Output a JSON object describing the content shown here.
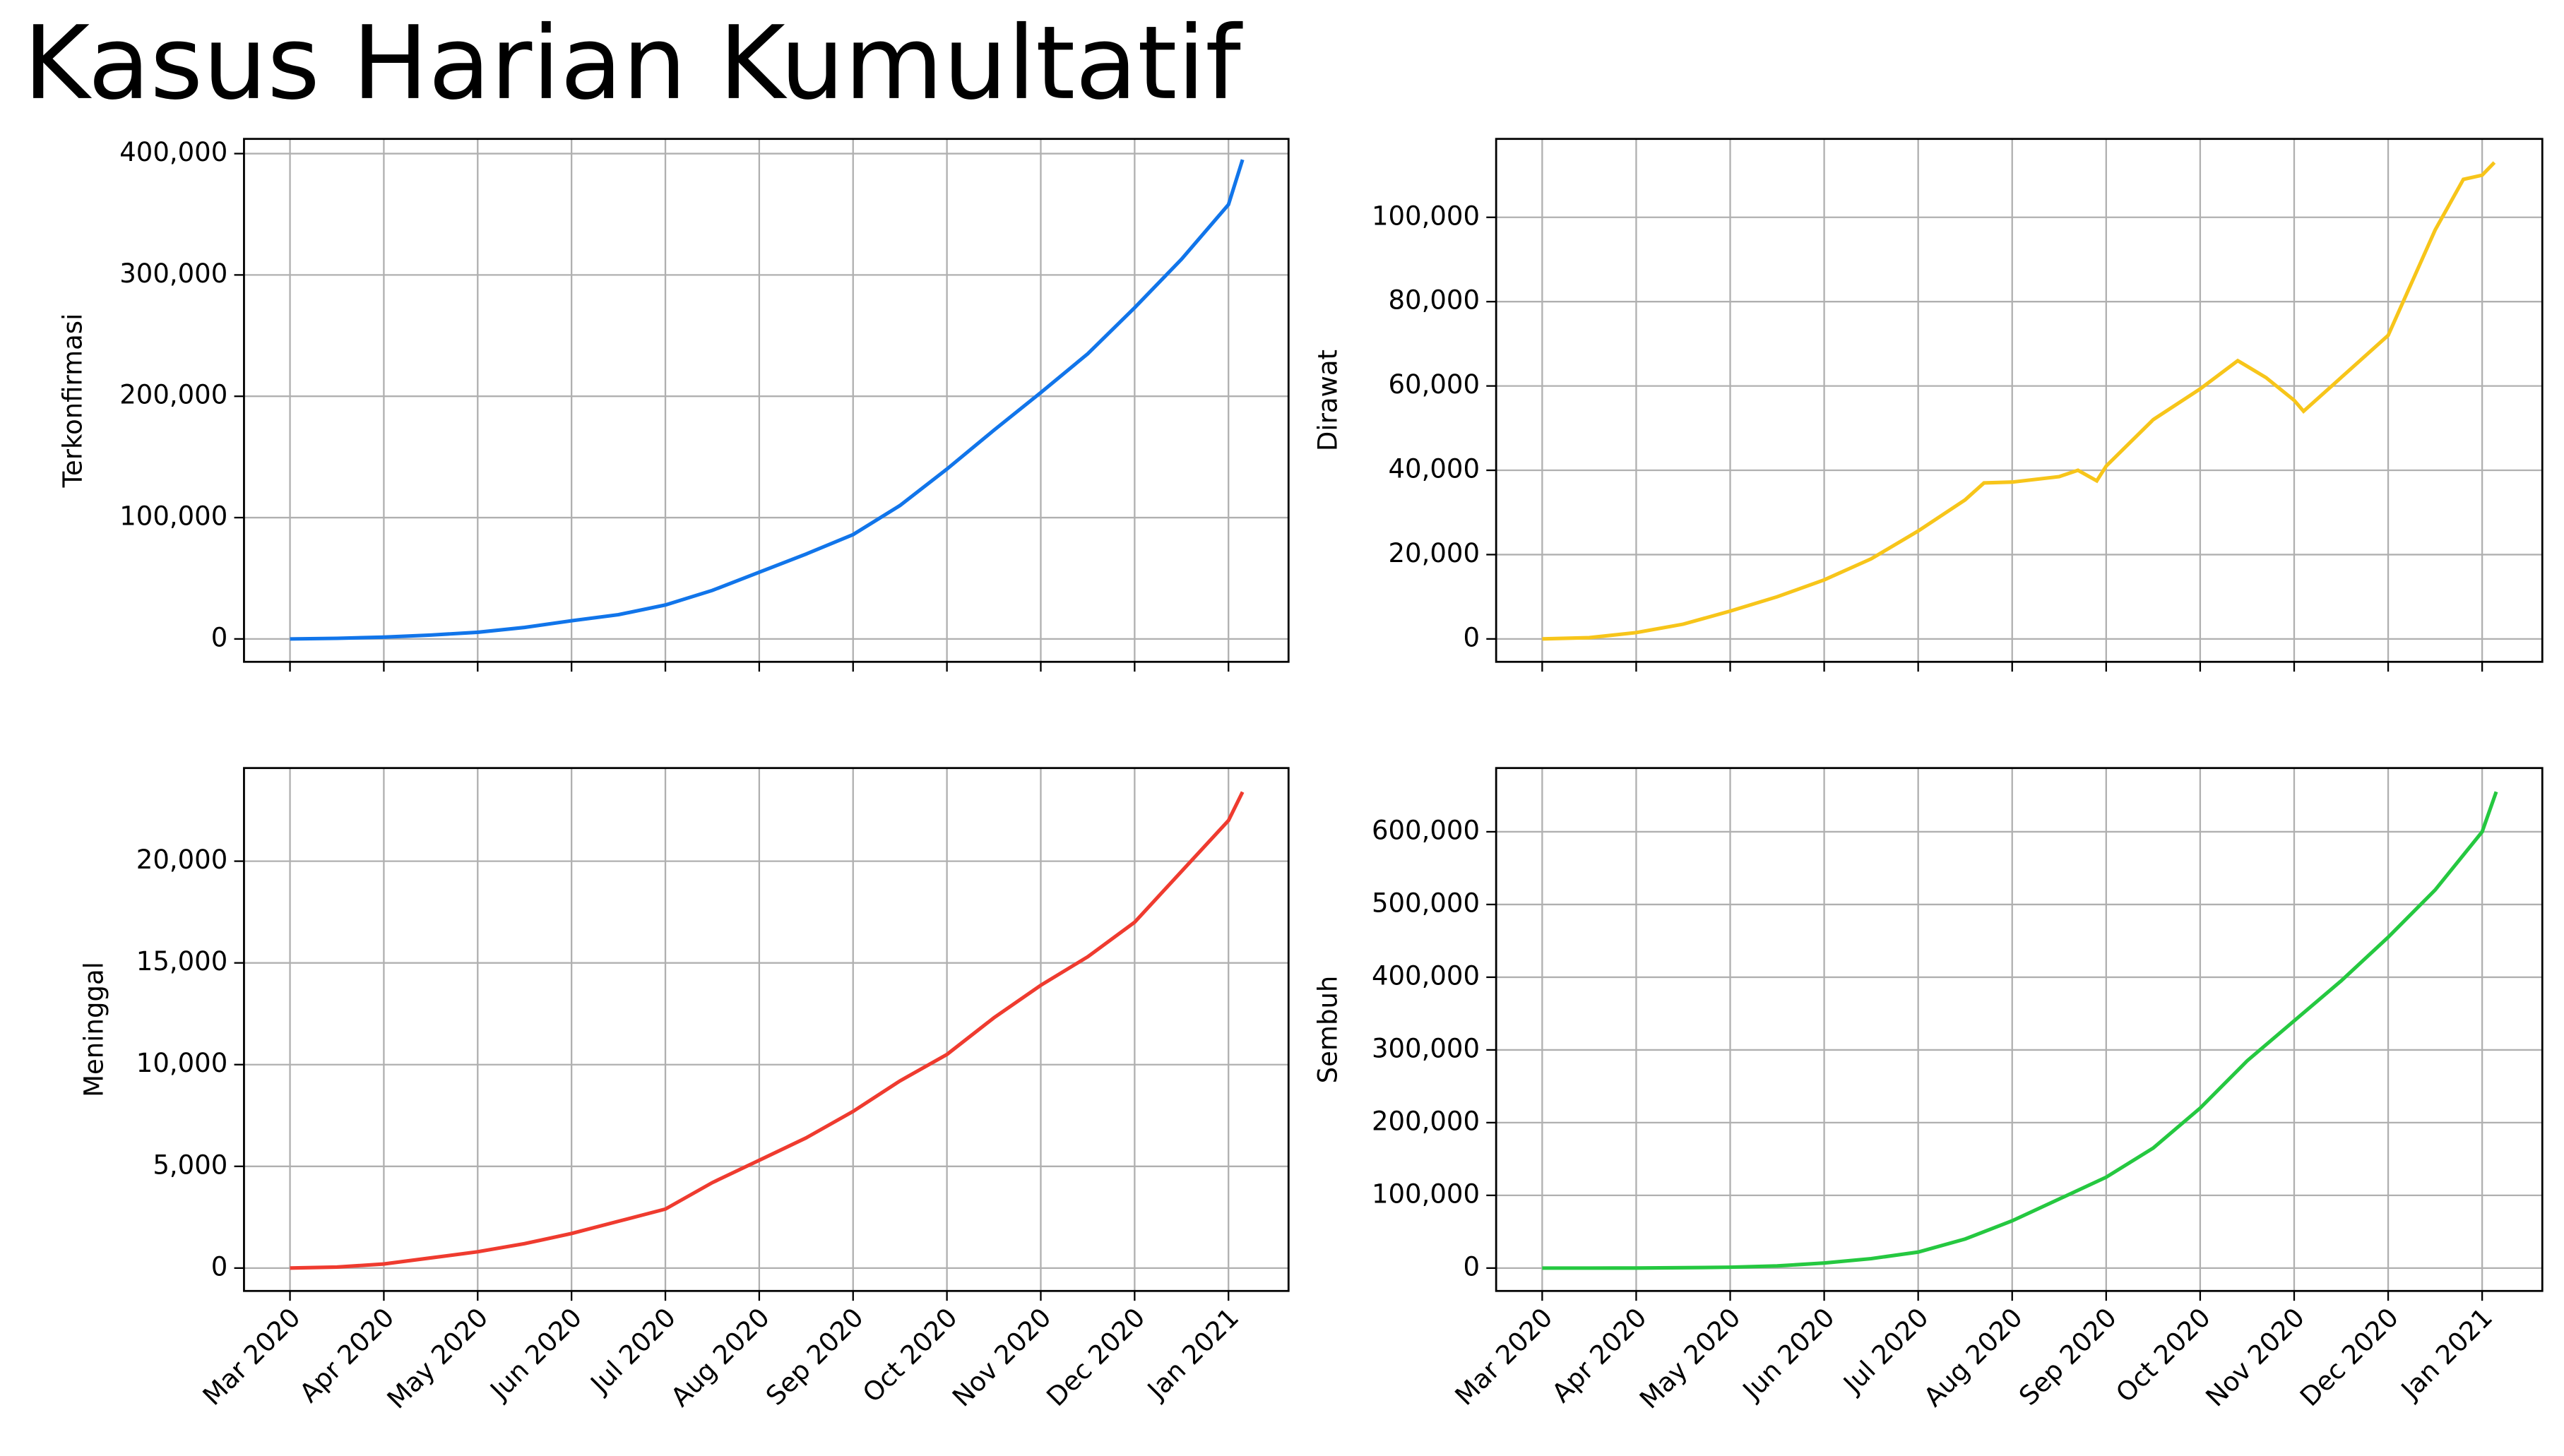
{
  "title": "Kasus Harian Kumultatif",
  "chart_data": [
    {
      "type": "line",
      "y_label": "Terkonfirmasi",
      "color": "#1175ea",
      "grid": true,
      "xtick_labels": false,
      "x": [
        0,
        0.5,
        1,
        1.5,
        2,
        2.5,
        3,
        3.5,
        4,
        4.5,
        5,
        5.5,
        6,
        6.5,
        7,
        7.5,
        8,
        8.5,
        9,
        9.5,
        10,
        10.15
      ],
      "values": [
        0,
        500,
        1500,
        3200,
        5500,
        9500,
        15000,
        20000,
        28000,
        40000,
        55000,
        70000,
        86000,
        110000,
        140000,
        172000,
        203000,
        235000,
        273000,
        313000,
        358000,
        395000
      ],
      "xlim": [
        -0.49,
        10.64
      ],
      "ylim": [
        -18855,
        412120
      ],
      "xticks": [
        0,
        1,
        2,
        3,
        4,
        5,
        6,
        7,
        8,
        9,
        10
      ],
      "yticks": [
        0,
        {
          "value": 100000,
          "label": "100,000"
        },
        {
          "value": 200000,
          "label": "200,000"
        },
        {
          "value": 300000,
          "label": "300,000"
        },
        {
          "value": 400000,
          "label": "400,000"
        }
      ]
    },
    {
      "type": "line",
      "y_label": "Dirawat",
      "color": "#f7c51a",
      "grid": true,
      "xtick_labels": false,
      "x": [
        0,
        0.5,
        1,
        1.5,
        2,
        2.5,
        3,
        3.5,
        4,
        4.5,
        4.7,
        5,
        5.5,
        5.7,
        5.9,
        6,
        6.5,
        7,
        7.4,
        7.7,
        8,
        8.1,
        8.5,
        9,
        9.5,
        9.8,
        10,
        10.13
      ],
      "values": [
        0,
        300,
        1500,
        3500,
        6600,
        10000,
        14000,
        19000,
        25600,
        33000,
        37000,
        37200,
        38500,
        40000,
        37500,
        41000,
        52000,
        59300,
        66000,
        62000,
        56600,
        54000,
        62000,
        72000,
        97000,
        109000,
        110000,
        113000
      ],
      "xlim": [
        -0.49,
        10.64
      ],
      "ylim": [
        -5430,
        118600
      ],
      "xticks": [
        0,
        1,
        2,
        3,
        4,
        5,
        6,
        7,
        8,
        9,
        10
      ],
      "yticks": [
        0,
        {
          "value": 20000,
          "label": "20,000"
        },
        {
          "value": 40000,
          "label": "40,000"
        },
        {
          "value": 60000,
          "label": "60,000"
        },
        {
          "value": 80000,
          "label": "80,000"
        },
        {
          "value": 100000,
          "label": "100,000"
        }
      ]
    },
    {
      "type": "line",
      "y_label": "Meninggal",
      "color": "#ef3b2f",
      "grid": true,
      "xtick_labels": true,
      "x": [
        0,
        0.5,
        1,
        1.5,
        2,
        2.5,
        3,
        3.5,
        4,
        4.5,
        5,
        5.5,
        6,
        6.5,
        7,
        7.5,
        8,
        8.5,
        9,
        9.5,
        10,
        10.15
      ],
      "values": [
        0,
        50,
        200,
        500,
        800,
        1200,
        1700,
        2300,
        2900,
        4200,
        5300,
        6400,
        7700,
        9200,
        10500,
        12300,
        13900,
        15300,
        17000,
        19500,
        22000,
        23400
      ],
      "xlim": [
        -0.49,
        10.64
      ],
      "ylim": [
        -1125,
        24578
      ],
      "xticks": [
        {
          "value": 0,
          "label": "Mar 2020"
        },
        {
          "value": 1,
          "label": "Apr 2020"
        },
        {
          "value": 2,
          "label": "May 2020"
        },
        {
          "value": 3,
          "label": "Jun 2020"
        },
        {
          "value": 4,
          "label": "Jul 2020"
        },
        {
          "value": 5,
          "label": "Aug 2020"
        },
        {
          "value": 6,
          "label": "Sep 2020"
        },
        {
          "value": 7,
          "label": "Oct 2020"
        },
        {
          "value": 8,
          "label": "Nov 2020"
        },
        {
          "value": 9,
          "label": "Dec 2020"
        },
        {
          "value": 10,
          "label": "Jan 2021"
        }
      ],
      "yticks": [
        0,
        {
          "value": 5000,
          "label": "5,000"
        },
        {
          "value": 10000,
          "label": "10,000"
        },
        {
          "value": 15000,
          "label": "15,000"
        },
        {
          "value": 20000,
          "label": "20,000"
        }
      ]
    },
    {
      "type": "line",
      "y_label": "Sembuh",
      "color": "#25c840",
      "grid": true,
      "xtick_labels": true,
      "x": [
        0,
        0.5,
        1,
        1.5,
        2,
        2.5,
        3,
        3.5,
        4,
        4.5,
        5,
        5.5,
        6,
        6.5,
        7,
        7.5,
        8,
        8.5,
        9,
        9.5,
        10,
        10.15
      ],
      "values": [
        0,
        0,
        100,
        500,
        1200,
        3000,
        7000,
        13000,
        22000,
        40000,
        65000,
        95000,
        125000,
        165000,
        220000,
        285000,
        340000,
        395000,
        455000,
        520000,
        600000,
        655000
      ],
      "xlim": [
        -0.49,
        10.64
      ],
      "ylim": [
        -31460,
        687640
      ],
      "xticks": [
        {
          "value": 0,
          "label": "Mar 2020"
        },
        {
          "value": 1,
          "label": "Apr 2020"
        },
        {
          "value": 2,
          "label": "May 2020"
        },
        {
          "value": 3,
          "label": "Jun 2020"
        },
        {
          "value": 4,
          "label": "Jul 2020"
        },
        {
          "value": 5,
          "label": "Aug 2020"
        },
        {
          "value": 6,
          "label": "Sep 2020"
        },
        {
          "value": 7,
          "label": "Oct 2020"
        },
        {
          "value": 8,
          "label": "Nov 2020"
        },
        {
          "value": 9,
          "label": "Dec 2020"
        },
        {
          "value": 10,
          "label": "Jan 2021"
        }
      ],
      "yticks": [
        0,
        {
          "value": 100000,
          "label": "100,000"
        },
        {
          "value": 200000,
          "label": "200,000"
        },
        {
          "value": 300000,
          "label": "300,000"
        },
        {
          "value": 400000,
          "label": "400,000"
        },
        {
          "value": 500000,
          "label": "500,000"
        },
        {
          "value": 600000,
          "label": "600,000"
        }
      ]
    }
  ]
}
